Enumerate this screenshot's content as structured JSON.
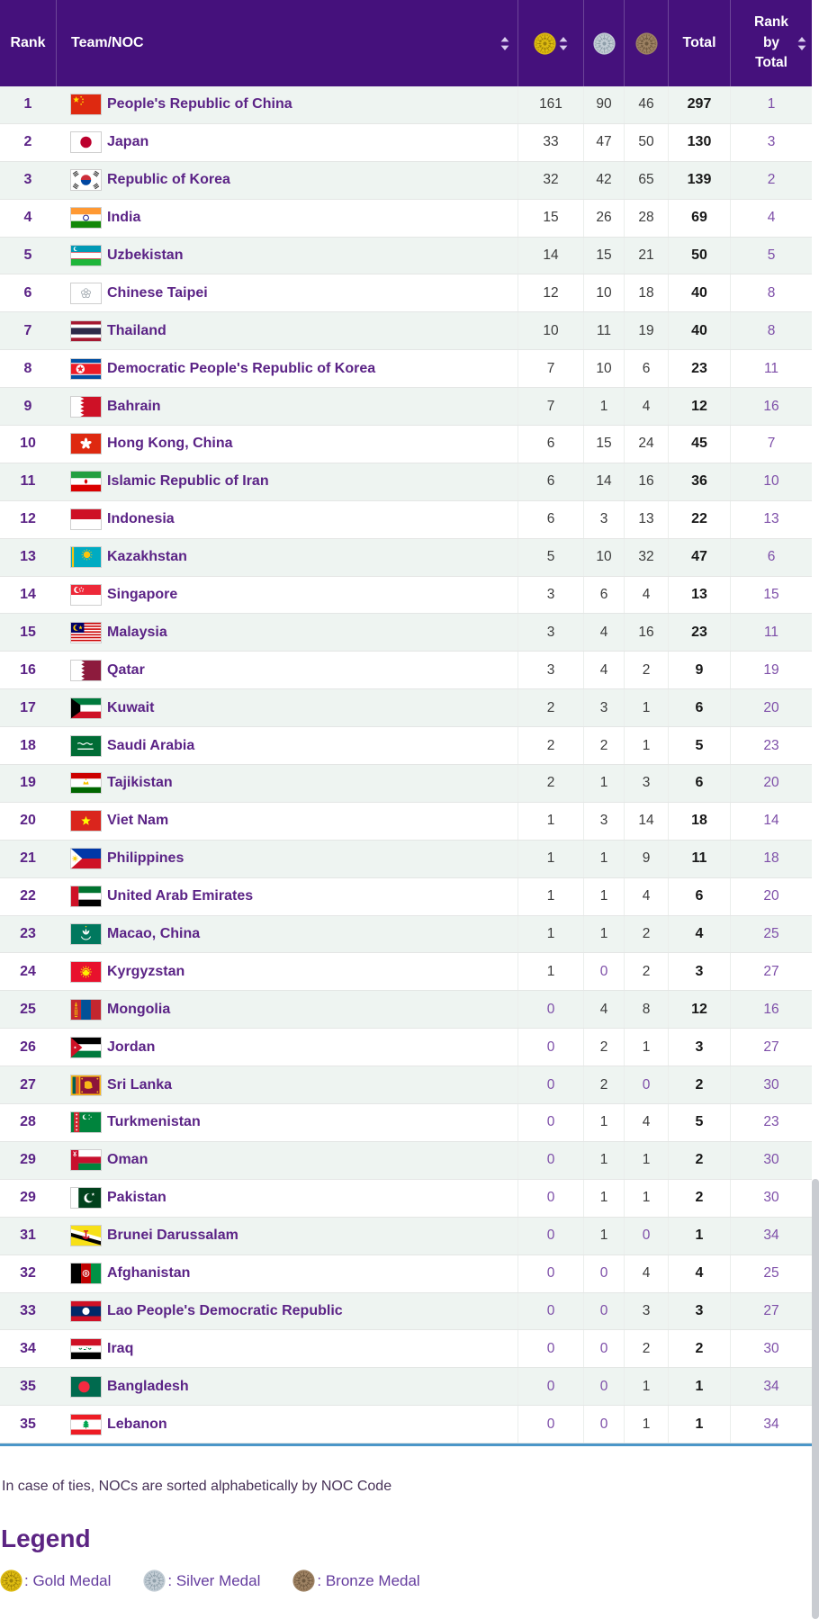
{
  "header": {
    "rank_label": "Rank",
    "team_label": "Team/NOC",
    "total_label": "Total",
    "rank_by_total_label": "Rank by Total",
    "icons": [
      "sort-icon",
      "gold-medal-icon",
      "silver-medal-icon",
      "bronze-medal-icon"
    ]
  },
  "rows": [
    {
      "rank": "1",
      "team": "People's Republic of China",
      "flag": "chn",
      "gold": "161",
      "silver": "90",
      "bronze": "46",
      "total": "297",
      "rank_by_total": "1"
    },
    {
      "rank": "2",
      "team": "Japan",
      "flag": "jpn",
      "gold": "33",
      "silver": "47",
      "bronze": "50",
      "total": "130",
      "rank_by_total": "3"
    },
    {
      "rank": "3",
      "team": "Republic of Korea",
      "flag": "kor",
      "gold": "32",
      "silver": "42",
      "bronze": "65",
      "total": "139",
      "rank_by_total": "2"
    },
    {
      "rank": "4",
      "team": "India",
      "flag": "ind",
      "gold": "15",
      "silver": "26",
      "bronze": "28",
      "total": "69",
      "rank_by_total": "4"
    },
    {
      "rank": "5",
      "team": "Uzbekistan",
      "flag": "uzb",
      "gold": "14",
      "silver": "15",
      "bronze": "21",
      "total": "50",
      "rank_by_total": "5"
    },
    {
      "rank": "6",
      "team": "Chinese Taipei",
      "flag": "tpe",
      "gold": "12",
      "silver": "10",
      "bronze": "18",
      "total": "40",
      "rank_by_total": "8"
    },
    {
      "rank": "7",
      "team": "Thailand",
      "flag": "tha",
      "gold": "10",
      "silver": "11",
      "bronze": "19",
      "total": "40",
      "rank_by_total": "8"
    },
    {
      "rank": "8",
      "team": "Democratic People's Republic of Korea",
      "flag": "prk",
      "gold": "7",
      "silver": "10",
      "bronze": "6",
      "total": "23",
      "rank_by_total": "11"
    },
    {
      "rank": "9",
      "team": "Bahrain",
      "flag": "brn",
      "gold": "7",
      "silver": "1",
      "bronze": "4",
      "total": "12",
      "rank_by_total": "16"
    },
    {
      "rank": "10",
      "team": "Hong Kong, China",
      "flag": "hkg",
      "gold": "6",
      "silver": "15",
      "bronze": "24",
      "total": "45",
      "rank_by_total": "7"
    },
    {
      "rank": "11",
      "team": "Islamic Republic of Iran",
      "flag": "iri",
      "gold": "6",
      "silver": "14",
      "bronze": "16",
      "total": "36",
      "rank_by_total": "10"
    },
    {
      "rank": "12",
      "team": "Indonesia",
      "flag": "ina",
      "gold": "6",
      "silver": "3",
      "bronze": "13",
      "total": "22",
      "rank_by_total": "13"
    },
    {
      "rank": "13",
      "team": "Kazakhstan",
      "flag": "kaz",
      "gold": "5",
      "silver": "10",
      "bronze": "32",
      "total": "47",
      "rank_by_total": "6"
    },
    {
      "rank": "14",
      "team": "Singapore",
      "flag": "sgp",
      "gold": "3",
      "silver": "6",
      "bronze": "4",
      "total": "13",
      "rank_by_total": "15"
    },
    {
      "rank": "15",
      "team": "Malaysia",
      "flag": "mas",
      "gold": "3",
      "silver": "4",
      "bronze": "16",
      "total": "23",
      "rank_by_total": "11"
    },
    {
      "rank": "16",
      "team": "Qatar",
      "flag": "qat",
      "gold": "3",
      "silver": "4",
      "bronze": "2",
      "total": "9",
      "rank_by_total": "19"
    },
    {
      "rank": "17",
      "team": "Kuwait",
      "flag": "kuw",
      "gold": "2",
      "silver": "3",
      "bronze": "1",
      "total": "6",
      "rank_by_total": "20"
    },
    {
      "rank": "18",
      "team": "Saudi Arabia",
      "flag": "ksa",
      "gold": "2",
      "silver": "2",
      "bronze": "1",
      "total": "5",
      "rank_by_total": "23"
    },
    {
      "rank": "19",
      "team": "Tajikistan",
      "flag": "tjk",
      "gold": "2",
      "silver": "1",
      "bronze": "3",
      "total": "6",
      "rank_by_total": "20"
    },
    {
      "rank": "20",
      "team": "Viet Nam",
      "flag": "vie",
      "gold": "1",
      "silver": "3",
      "bronze": "14",
      "total": "18",
      "rank_by_total": "14"
    },
    {
      "rank": "21",
      "team": "Philippines",
      "flag": "phi",
      "gold": "1",
      "silver": "1",
      "bronze": "9",
      "total": "11",
      "rank_by_total": "18"
    },
    {
      "rank": "22",
      "team": "United Arab Emirates",
      "flag": "uae",
      "gold": "1",
      "silver": "1",
      "bronze": "4",
      "total": "6",
      "rank_by_total": "20"
    },
    {
      "rank": "23",
      "team": "Macao, China",
      "flag": "mac",
      "gold": "1",
      "silver": "1",
      "bronze": "2",
      "total": "4",
      "rank_by_total": "25"
    },
    {
      "rank": "24",
      "team": "Kyrgyzstan",
      "flag": "kgz",
      "gold": "1",
      "silver": "0",
      "bronze": "2",
      "total": "3",
      "rank_by_total": "27"
    },
    {
      "rank": "25",
      "team": "Mongolia",
      "flag": "mgl",
      "gold": "0",
      "silver": "4",
      "bronze": "8",
      "total": "12",
      "rank_by_total": "16"
    },
    {
      "rank": "26",
      "team": "Jordan",
      "flag": "jor",
      "gold": "0",
      "silver": "2",
      "bronze": "1",
      "total": "3",
      "rank_by_total": "27"
    },
    {
      "rank": "27",
      "team": "Sri Lanka",
      "flag": "sri",
      "gold": "0",
      "silver": "2",
      "bronze": "0",
      "total": "2",
      "rank_by_total": "30"
    },
    {
      "rank": "28",
      "team": "Turkmenistan",
      "flag": "tkm",
      "gold": "0",
      "silver": "1",
      "bronze": "4",
      "total": "5",
      "rank_by_total": "23"
    },
    {
      "rank": "29",
      "team": "Oman",
      "flag": "oma",
      "gold": "0",
      "silver": "1",
      "bronze": "1",
      "total": "2",
      "rank_by_total": "30"
    },
    {
      "rank": "29",
      "team": "Pakistan",
      "flag": "pak",
      "gold": "0",
      "silver": "1",
      "bronze": "1",
      "total": "2",
      "rank_by_total": "30"
    },
    {
      "rank": "31",
      "team": "Brunei Darussalam",
      "flag": "bru",
      "gold": "0",
      "silver": "1",
      "bronze": "0",
      "total": "1",
      "rank_by_total": "34"
    },
    {
      "rank": "32",
      "team": "Afghanistan",
      "flag": "afg",
      "gold": "0",
      "silver": "0",
      "bronze": "4",
      "total": "4",
      "rank_by_total": "25"
    },
    {
      "rank": "33",
      "team": "Lao People's Democratic Republic",
      "flag": "lao",
      "gold": "0",
      "silver": "0",
      "bronze": "3",
      "total": "3",
      "rank_by_total": "27"
    },
    {
      "rank": "34",
      "team": "Iraq",
      "flag": "irq",
      "gold": "0",
      "silver": "0",
      "bronze": "2",
      "total": "2",
      "rank_by_total": "30"
    },
    {
      "rank": "35",
      "team": "Bangladesh",
      "flag": "ban",
      "gold": "0",
      "silver": "0",
      "bronze": "1",
      "total": "1",
      "rank_by_total": "34"
    },
    {
      "rank": "35",
      "team": "Lebanon",
      "flag": "lbn",
      "gold": "0",
      "silver": "0",
      "bronze": "1",
      "total": "1",
      "rank_by_total": "34"
    }
  ],
  "footer": {
    "tie_note": "In case of ties, NOCs are sorted alphabetically by NOC Code",
    "legend_title": "Legend",
    "legend": [
      {
        "icon": "gold-medal-icon",
        "label": ": Gold Medal"
      },
      {
        "icon": "silver-medal-icon",
        "label": ": Silver Medal"
      },
      {
        "icon": "bronze-medal-icon",
        "label": ": Bronze Medal"
      }
    ]
  },
  "colors": {
    "header_bg": "#45117c",
    "row_alt_bg": "#eef4f1",
    "team_purple": "#5b2386",
    "rank_by_total_purple": "#7d4ea8",
    "zero_value_purple": "#7d4ea8",
    "divider_blue": "#4b96c8",
    "gold": "#e0bc12",
    "silver": "#bcc8d0",
    "bronze": "#9a7f61"
  }
}
